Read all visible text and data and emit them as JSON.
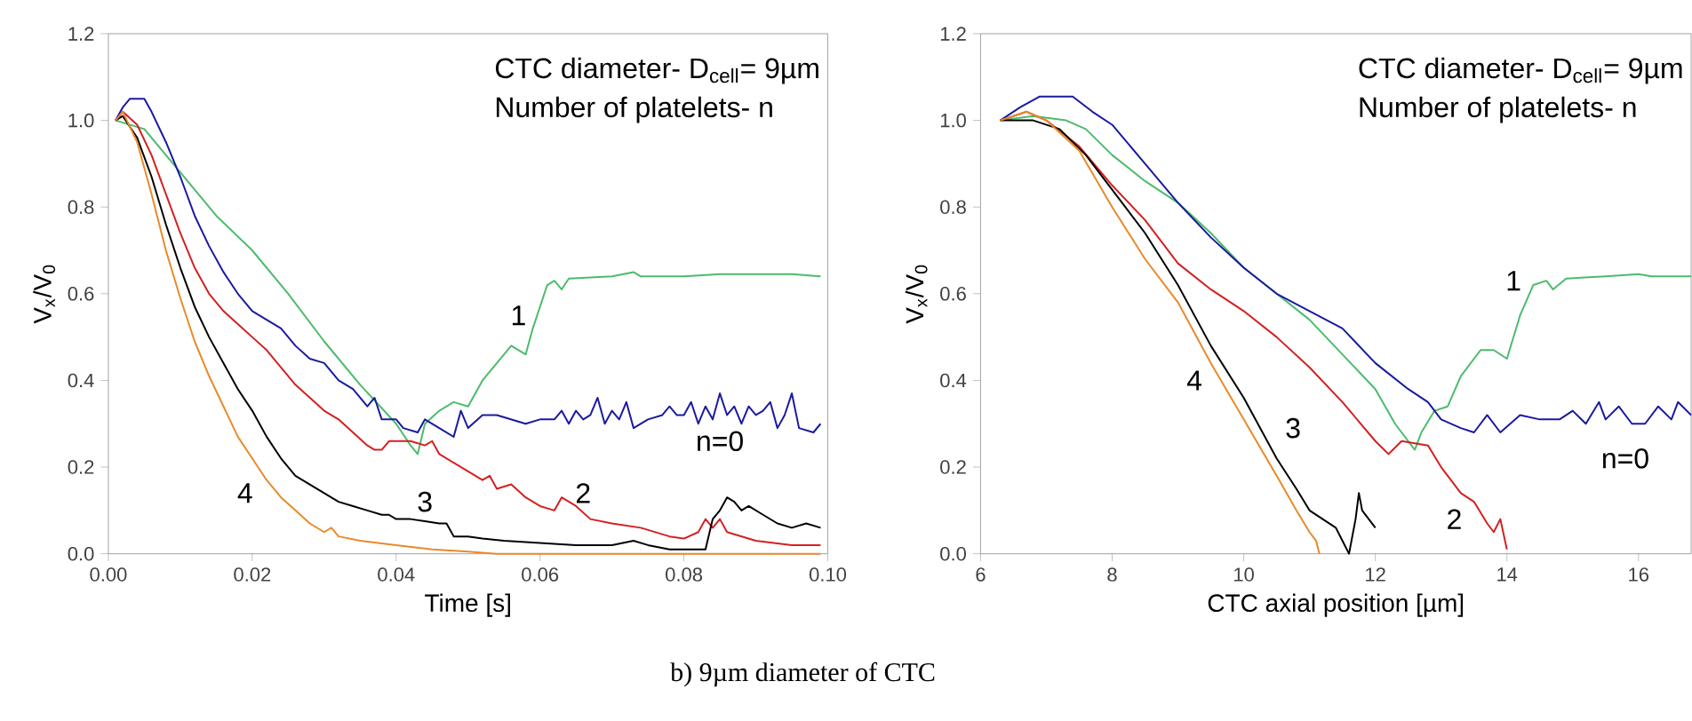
{
  "chart_data": [
    {
      "type": "line",
      "xlabel": "Time [s]",
      "ylabel": "V$_{x}$/V$_{0}$",
      "xlim": [
        0,
        0.1
      ],
      "ylim": [
        0,
        1.2
      ],
      "xticks": [
        {
          "value": 0,
          "label": "0.00"
        },
        {
          "value": 0.02,
          "label": "0.02"
        },
        {
          "value": 0.04,
          "label": "0.04"
        },
        {
          "value": 0.06,
          "label": "0.06"
        },
        {
          "value": 0.08,
          "label": "0.08"
        },
        {
          "value": 0.1,
          "label": "0.10"
        }
      ],
      "yticks": [
        {
          "value": 0,
          "label": "0.0"
        },
        {
          "value": 0.2,
          "label": "0.2"
        },
        {
          "value": 0.4,
          "label": "0.4"
        },
        {
          "value": 0.6,
          "label": "0.6"
        },
        {
          "value": 0.8,
          "label": "0.8"
        },
        {
          "value": 1.0,
          "label": "1.0"
        },
        {
          "value": 1.2,
          "label": "1.2"
        }
      ],
      "annotations": [
        "CTC diameter- D$_{cell}$= 9µm",
        "Number of platelets- n"
      ],
      "series": [
        {
          "name": "1",
          "color": "#4cbb6c",
          "x": [
            0.001,
            0.005,
            0.01,
            0.015,
            0.02,
            0.025,
            0.03,
            0.035,
            0.04,
            0.042,
            0.043,
            0.044,
            0.046,
            0.048,
            0.05,
            0.052,
            0.055,
            0.056,
            0.058,
            0.059,
            0.061,
            0.062,
            0.063,
            0.064,
            0.07,
            0.073,
            0.074,
            0.08,
            0.085,
            0.09,
            0.095,
            0.099
          ],
          "values": [
            1.0,
            0.98,
            0.88,
            0.78,
            0.7,
            0.6,
            0.49,
            0.39,
            0.3,
            0.25,
            0.23,
            0.3,
            0.33,
            0.35,
            0.34,
            0.4,
            0.46,
            0.48,
            0.46,
            0.52,
            0.62,
            0.63,
            0.61,
            0.635,
            0.64,
            0.65,
            0.64,
            0.64,
            0.645,
            0.645,
            0.645,
            0.64
          ]
        },
        {
          "name": "n=0",
          "color": "#1a1aa0",
          "x": [
            0.001,
            0.002,
            0.003,
            0.005,
            0.006,
            0.008,
            0.01,
            0.012,
            0.014,
            0.016,
            0.018,
            0.02,
            0.022,
            0.024,
            0.026,
            0.028,
            0.03,
            0.032,
            0.034,
            0.035,
            0.036,
            0.037,
            0.038,
            0.04,
            0.041,
            0.043,
            0.044,
            0.046,
            0.048,
            0.049,
            0.05,
            0.052,
            0.054,
            0.056,
            0.058,
            0.06,
            0.062,
            0.063,
            0.064,
            0.065,
            0.066,
            0.067,
            0.068,
            0.069,
            0.07,
            0.071,
            0.072,
            0.073,
            0.075,
            0.077,
            0.078,
            0.079,
            0.08,
            0.081,
            0.082,
            0.083,
            0.084,
            0.085,
            0.086,
            0.087,
            0.088,
            0.089,
            0.09,
            0.091,
            0.092,
            0.093,
            0.094,
            0.095,
            0.096,
            0.098,
            0.099
          ],
          "values": [
            1.0,
            1.03,
            1.05,
            1.05,
            1.02,
            0.95,
            0.87,
            0.78,
            0.71,
            0.65,
            0.6,
            0.56,
            0.54,
            0.52,
            0.48,
            0.45,
            0.44,
            0.4,
            0.38,
            0.36,
            0.34,
            0.36,
            0.31,
            0.31,
            0.29,
            0.28,
            0.31,
            0.29,
            0.27,
            0.33,
            0.29,
            0.32,
            0.32,
            0.31,
            0.3,
            0.31,
            0.31,
            0.33,
            0.3,
            0.33,
            0.31,
            0.32,
            0.36,
            0.3,
            0.33,
            0.31,
            0.35,
            0.29,
            0.31,
            0.32,
            0.34,
            0.32,
            0.32,
            0.35,
            0.3,
            0.34,
            0.31,
            0.37,
            0.32,
            0.34,
            0.3,
            0.34,
            0.32,
            0.33,
            0.35,
            0.29,
            0.32,
            0.37,
            0.29,
            0.28,
            0.3
          ]
        },
        {
          "name": "2",
          "color": "#d42020",
          "x": [
            0.001,
            0.002,
            0.004,
            0.006,
            0.008,
            0.01,
            0.012,
            0.014,
            0.016,
            0.018,
            0.02,
            0.022,
            0.024,
            0.026,
            0.028,
            0.03,
            0.032,
            0.034,
            0.036,
            0.037,
            0.038,
            0.039,
            0.04,
            0.042,
            0.044,
            0.045,
            0.046,
            0.048,
            0.05,
            0.052,
            0.053,
            0.054,
            0.056,
            0.058,
            0.06,
            0.062,
            0.063,
            0.065,
            0.067,
            0.07,
            0.074,
            0.078,
            0.08,
            0.082,
            0.083,
            0.084,
            0.085,
            0.086,
            0.088,
            0.09,
            0.095,
            0.099
          ],
          "values": [
            1.0,
            1.02,
            0.99,
            0.92,
            0.83,
            0.74,
            0.66,
            0.6,
            0.56,
            0.53,
            0.5,
            0.47,
            0.43,
            0.39,
            0.36,
            0.33,
            0.31,
            0.28,
            0.25,
            0.24,
            0.24,
            0.26,
            0.26,
            0.26,
            0.25,
            0.26,
            0.23,
            0.21,
            0.19,
            0.17,
            0.18,
            0.15,
            0.16,
            0.13,
            0.11,
            0.1,
            0.13,
            0.11,
            0.08,
            0.07,
            0.06,
            0.04,
            0.035,
            0.05,
            0.08,
            0.06,
            0.08,
            0.05,
            0.04,
            0.03,
            0.02,
            0.02
          ]
        },
        {
          "name": "3",
          "color": "#000000",
          "x": [
            0.001,
            0.002,
            0.004,
            0.006,
            0.008,
            0.01,
            0.012,
            0.014,
            0.016,
            0.018,
            0.02,
            0.022,
            0.024,
            0.026,
            0.028,
            0.03,
            0.032,
            0.034,
            0.036,
            0.038,
            0.039,
            0.04,
            0.042,
            0.044,
            0.046,
            0.047,
            0.048,
            0.05,
            0.052,
            0.055,
            0.06,
            0.065,
            0.07,
            0.073,
            0.075,
            0.078,
            0.08,
            0.083,
            0.084,
            0.085,
            0.086,
            0.087,
            0.088,
            0.089,
            0.091,
            0.093,
            0.095,
            0.097,
            0.099
          ],
          "values": [
            1.0,
            1.01,
            0.96,
            0.87,
            0.76,
            0.66,
            0.57,
            0.5,
            0.44,
            0.38,
            0.33,
            0.27,
            0.22,
            0.18,
            0.16,
            0.14,
            0.12,
            0.11,
            0.1,
            0.09,
            0.09,
            0.08,
            0.08,
            0.075,
            0.07,
            0.07,
            0.04,
            0.04,
            0.035,
            0.03,
            0.025,
            0.02,
            0.02,
            0.03,
            0.02,
            0.01,
            0.01,
            0.01,
            0.08,
            0.1,
            0.13,
            0.12,
            0.1,
            0.11,
            0.09,
            0.07,
            0.06,
            0.07,
            0.06
          ]
        },
        {
          "name": "4",
          "color": "#e88a2a",
          "x": [
            0.001,
            0.002,
            0.004,
            0.006,
            0.008,
            0.01,
            0.012,
            0.014,
            0.016,
            0.018,
            0.02,
            0.022,
            0.024,
            0.026,
            0.028,
            0.03,
            0.031,
            0.032,
            0.035,
            0.04,
            0.045,
            0.05,
            0.054,
            0.06,
            0.08,
            0.099
          ],
          "values": [
            1.0,
            1.02,
            0.95,
            0.83,
            0.7,
            0.59,
            0.49,
            0.41,
            0.34,
            0.27,
            0.22,
            0.17,
            0.13,
            0.1,
            0.07,
            0.05,
            0.06,
            0.04,
            0.03,
            0.02,
            0.01,
            0.005,
            0.0,
            0.0,
            0.0,
            0.0
          ]
        }
      ]
    },
    {
      "type": "line",
      "xlabel": "CTC axial position [µm]",
      "ylabel": "V$_{x}$/V$_{0}$",
      "xlim": [
        6,
        16.8
      ],
      "ylim": [
        0,
        1.2
      ],
      "xticks": [
        6,
        8,
        10,
        12,
        14,
        16
      ],
      "yticks": [
        {
          "value": 0,
          "label": "0.0"
        },
        {
          "value": 0.2,
          "label": "0.2"
        },
        {
          "value": 0.4,
          "label": "0.4"
        },
        {
          "value": 0.6,
          "label": "0.6"
        },
        {
          "value": 0.8,
          "label": "0.8"
        },
        {
          "value": 1.0,
          "label": "1.0"
        },
        {
          "value": 1.2,
          "label": "1.2"
        }
      ],
      "annotations": [
        "CTC diameter- D$_{cell}$= 9µm",
        "Number of platelets- n",
        "b)    9µm diameter of CTC"
      ],
      "series": [
        {
          "name": "1",
          "color": "#4cbb6c",
          "x": [
            6.3,
            6.8,
            7.3,
            7.6,
            8.0,
            8.5,
            9.0,
            9.5,
            10.0,
            10.5,
            11.0,
            11.5,
            12.0,
            12.3,
            12.6,
            12.7,
            12.9,
            13.1,
            13.3,
            13.6,
            13.8,
            14.0,
            14.2,
            14.4,
            14.6,
            14.7,
            14.9,
            15.5,
            16.0,
            16.2,
            16.8
          ],
          "values": [
            1.0,
            1.01,
            1.0,
            0.98,
            0.92,
            0.86,
            0.81,
            0.74,
            0.66,
            0.6,
            0.54,
            0.46,
            0.38,
            0.3,
            0.24,
            0.28,
            0.33,
            0.34,
            0.41,
            0.47,
            0.47,
            0.45,
            0.55,
            0.62,
            0.63,
            0.61,
            0.635,
            0.64,
            0.645,
            0.64,
            0.64
          ]
        },
        {
          "name": "n=0",
          "color": "#1a1aa0",
          "x": [
            6.3,
            6.6,
            6.9,
            7.4,
            7.7,
            8.0,
            8.5,
            9.0,
            9.5,
            10.0,
            10.5,
            11.0,
            11.5,
            12.0,
            12.5,
            12.8,
            13.0,
            13.3,
            13.5,
            13.7,
            13.9,
            14.2,
            14.5,
            14.8,
            15.0,
            15.2,
            15.4,
            15.5,
            15.7,
            15.9,
            16.1,
            16.3,
            16.5,
            16.6,
            16.8
          ],
          "values": [
            1.0,
            1.03,
            1.055,
            1.055,
            1.02,
            0.99,
            0.9,
            0.81,
            0.73,
            0.66,
            0.6,
            0.56,
            0.52,
            0.44,
            0.38,
            0.35,
            0.31,
            0.29,
            0.28,
            0.32,
            0.28,
            0.32,
            0.31,
            0.31,
            0.33,
            0.3,
            0.35,
            0.31,
            0.34,
            0.3,
            0.3,
            0.34,
            0.31,
            0.35,
            0.32
          ]
        },
        {
          "name": "2",
          "color": "#d42020",
          "x": [
            6.3,
            6.7,
            7.0,
            7.5,
            8.0,
            8.5,
            9.0,
            9.5,
            10.0,
            10.5,
            11.0,
            11.5,
            12.0,
            12.2,
            12.4,
            12.8,
            13.0,
            13.3,
            13.5,
            13.7,
            13.8,
            13.9,
            14.0
          ],
          "values": [
            1.0,
            1.02,
            1.0,
            0.94,
            0.85,
            0.77,
            0.67,
            0.61,
            0.56,
            0.5,
            0.43,
            0.35,
            0.26,
            0.23,
            0.26,
            0.25,
            0.2,
            0.14,
            0.12,
            0.07,
            0.05,
            0.08,
            0.01
          ]
        },
        {
          "name": "3",
          "color": "#000000",
          "x": [
            6.3,
            6.8,
            7.2,
            7.6,
            8.0,
            8.5,
            9.0,
            9.5,
            10.0,
            10.5,
            10.8,
            11.0,
            11.2,
            11.4,
            11.5,
            11.6,
            11.7,
            11.75,
            11.8,
            11.9,
            12.0
          ],
          "values": [
            1.0,
            1.0,
            0.98,
            0.92,
            0.84,
            0.74,
            0.62,
            0.48,
            0.36,
            0.22,
            0.15,
            0.1,
            0.08,
            0.06,
            0.03,
            0.0,
            0.08,
            0.14,
            0.1,
            0.08,
            0.06
          ]
        },
        {
          "name": "4",
          "color": "#e88a2a",
          "x": [
            6.3,
            6.7,
            7.0,
            7.5,
            8.0,
            8.5,
            9.0,
            9.5,
            10.0,
            10.5,
            10.8,
            11.0,
            11.1,
            11.15
          ],
          "values": [
            1.0,
            1.02,
            1.0,
            0.93,
            0.8,
            0.68,
            0.58,
            0.44,
            0.31,
            0.18,
            0.1,
            0.05,
            0.03,
            0.0
          ]
        }
      ]
    }
  ]
}
